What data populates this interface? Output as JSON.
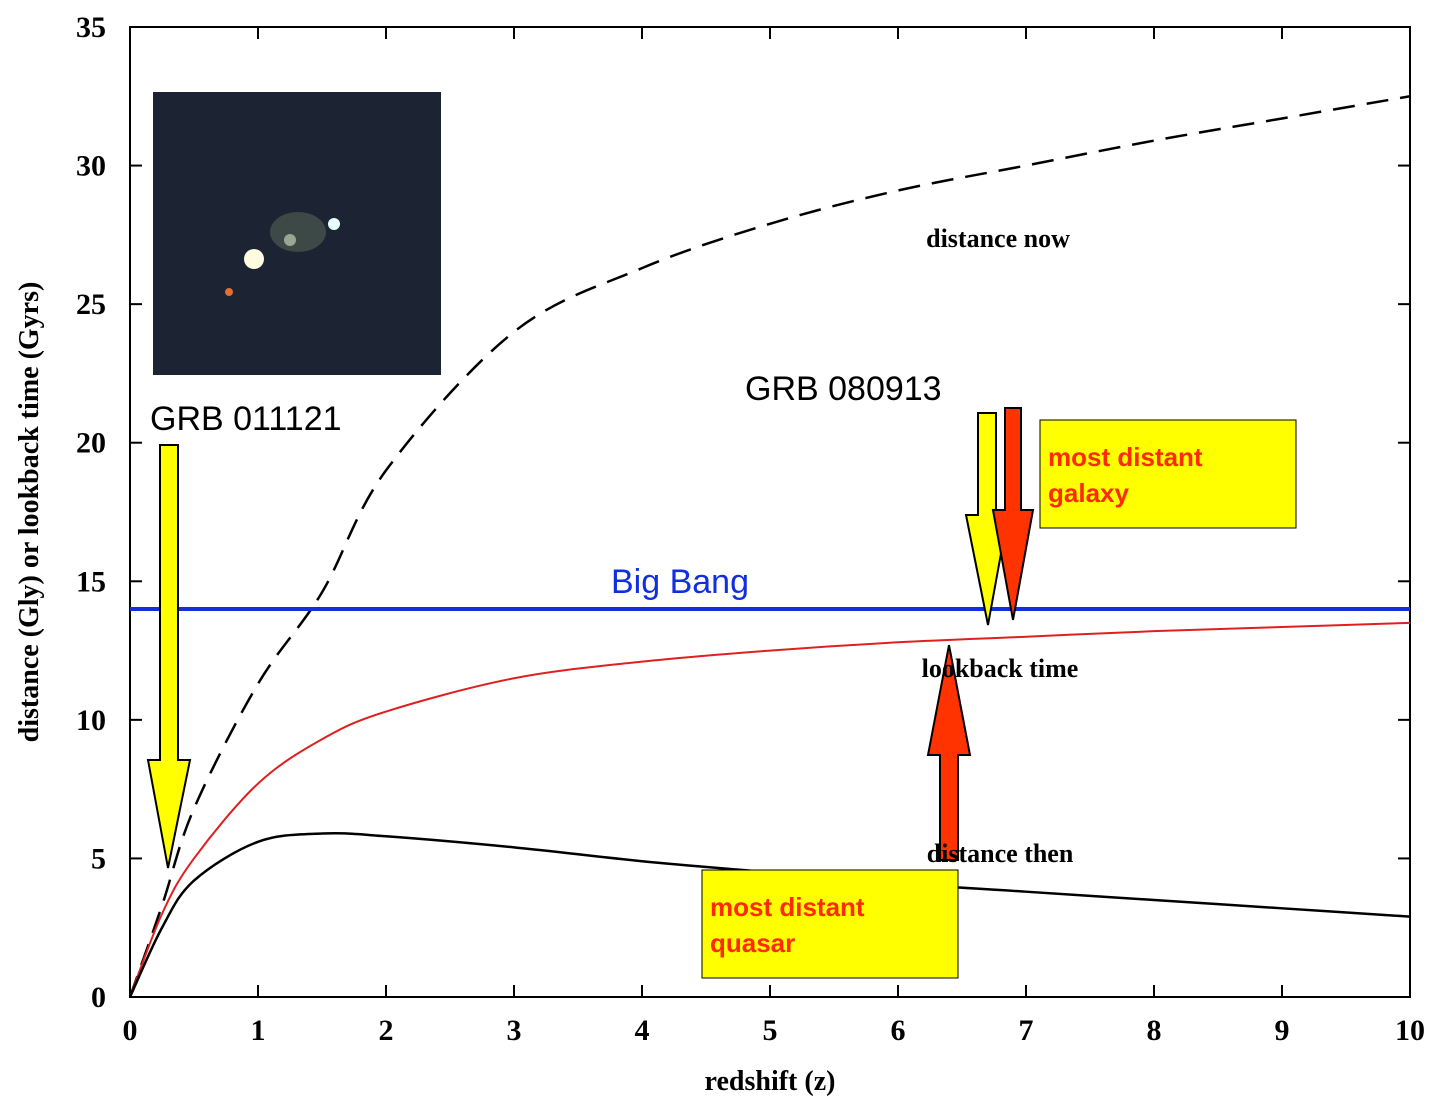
{
  "chart_data": {
    "type": "line",
    "xlabel": "redshift (z)",
    "ylabel": "distance (Gly) or lookback time (Gyrs)",
    "x": [
      0,
      0.25,
      0.5,
      1,
      1.5,
      2,
      3,
      4,
      5,
      6,
      7,
      8,
      9,
      10
    ],
    "series": [
      {
        "name": "distance now",
        "color": "#000000",
        "dash": true,
        "values": [
          0,
          3.3,
          6.8,
          11.3,
          14.6,
          19,
          24,
          26.3,
          27.9,
          29.1,
          30,
          30.9,
          31.7,
          32.5
        ]
      },
      {
        "name": "lookback time",
        "color": "#e02020",
        "dash": false,
        "values": [
          0,
          3,
          5,
          7.7,
          9.3,
          10.3,
          11.5,
          12.1,
          12.5,
          12.8,
          13,
          13.2,
          13.35,
          13.5
        ]
      },
      {
        "name": "distance then",
        "color": "#000000",
        "dash": false,
        "values": [
          0,
          2.5,
          4.2,
          5.6,
          5.9,
          5.8,
          5.4,
          4.9,
          4.5,
          4.1,
          3.8,
          3.5,
          3.2,
          2.9
        ]
      },
      {
        "name": "Big Bang",
        "color": "#1030e0",
        "dash": false,
        "values": [
          14,
          14,
          14,
          14,
          14,
          14,
          14,
          14,
          14,
          14,
          14,
          14,
          14,
          14
        ]
      }
    ],
    "xlim": [
      0,
      10
    ],
    "xticks": [
      0,
      1,
      2,
      3,
      4,
      5,
      6,
      7,
      8,
      9,
      10
    ],
    "ylim": [
      0,
      35
    ],
    "yticks": [
      0,
      5,
      10,
      15,
      20,
      25,
      30,
      35
    ],
    "annotations": [
      {
        "lines": [
          "GRB 011121"
        ]
      },
      {
        "lines": [
          "GRB 080913"
        ]
      },
      {
        "lines": [
          "most distant",
          "galaxy"
        ]
      },
      {
        "lines": [
          "most distant",
          "quasar"
        ]
      }
    ]
  }
}
